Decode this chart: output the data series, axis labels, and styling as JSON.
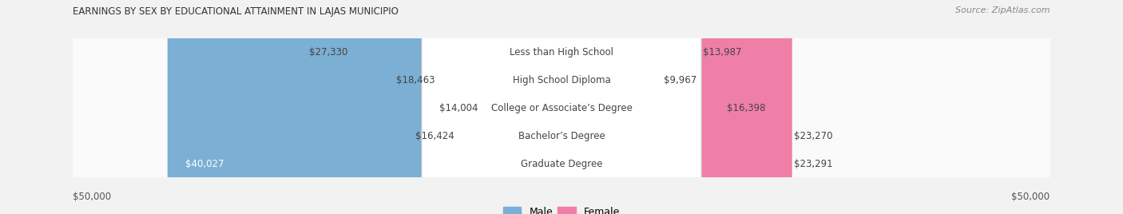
{
  "title": "EARNINGS BY SEX BY EDUCATIONAL ATTAINMENT IN LAJAS MUNICIPIO",
  "source": "Source: ZipAtlas.com",
  "categories": [
    "Less than High School",
    "High School Diploma",
    "College or Associate’s Degree",
    "Bachelor’s Degree",
    "Graduate Degree"
  ],
  "male_values": [
    27330,
    18463,
    14004,
    16424,
    40027
  ],
  "female_values": [
    13987,
    9967,
    16398,
    23270,
    23291
  ],
  "male_color": "#7bafd4",
  "female_color": "#f07fa8",
  "max_val": 50000,
  "bg_color": "#f2f2f2",
  "row_colors": [
    "#fafafa",
    "#efefef",
    "#fafafa",
    "#efefef",
    "#fafafa"
  ],
  "label_font_size": 8.5,
  "cat_font_size": 8.5,
  "title_font_size": 8.5,
  "source_font_size": 8.0
}
